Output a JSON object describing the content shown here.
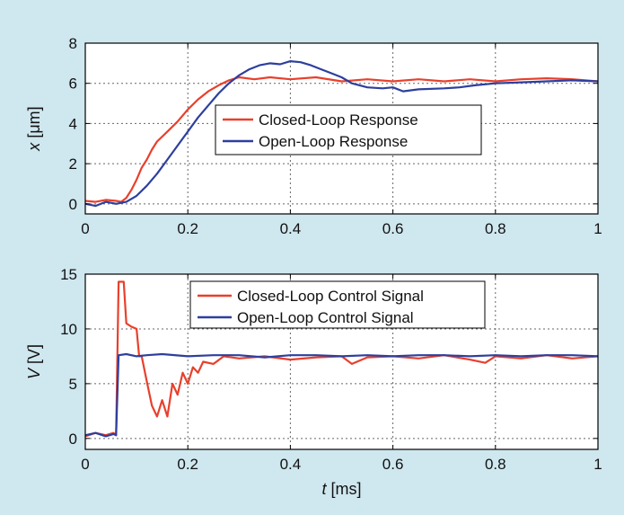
{
  "figure": {
    "background": "#cfe7ef"
  },
  "chart_data": [
    {
      "type": "line",
      "xlim": [
        0,
        1
      ],
      "ylim": [
        -0.5,
        8
      ],
      "xticks": [
        "0",
        "0.2",
        "0.4",
        "0.6",
        "0.8",
        "1"
      ],
      "yticks": [
        "0",
        "2",
        "4",
        "6",
        "8"
      ],
      "ylabel": {
        "var": "x",
        "unit": " [μm]"
      },
      "grid": true,
      "legend_position": "center",
      "series": [
        {
          "name": "Closed-Loop Response",
          "color": "#e8402c",
          "points": [
            [
              0,
              0.15
            ],
            [
              0.02,
              0.1
            ],
            [
              0.04,
              0.2
            ],
            [
              0.06,
              0.15
            ],
            [
              0.07,
              0.1
            ],
            [
              0.08,
              0.3
            ],
            [
              0.09,
              0.7
            ],
            [
              0.1,
              1.2
            ],
            [
              0.11,
              1.8
            ],
            [
              0.12,
              2.2
            ],
            [
              0.13,
              2.7
            ],
            [
              0.14,
              3.1
            ],
            [
              0.16,
              3.6
            ],
            [
              0.18,
              4.1
            ],
            [
              0.2,
              4.7
            ],
            [
              0.22,
              5.2
            ],
            [
              0.24,
              5.6
            ],
            [
              0.26,
              5.9
            ],
            [
              0.28,
              6.15
            ],
            [
              0.3,
              6.3
            ],
            [
              0.33,
              6.2
            ],
            [
              0.36,
              6.3
            ],
            [
              0.4,
              6.2
            ],
            [
              0.45,
              6.3
            ],
            [
              0.5,
              6.1
            ],
            [
              0.55,
              6.2
            ],
            [
              0.6,
              6.1
            ],
            [
              0.65,
              6.2
            ],
            [
              0.7,
              6.1
            ],
            [
              0.75,
              6.2
            ],
            [
              0.8,
              6.1
            ],
            [
              0.85,
              6.2
            ],
            [
              0.9,
              6.25
            ],
            [
              0.95,
              6.2
            ],
            [
              1.0,
              6.1
            ]
          ]
        },
        {
          "name": "Open-Loop Response",
          "color": "#2d3f9e",
          "points": [
            [
              0,
              0.0
            ],
            [
              0.02,
              -0.1
            ],
            [
              0.04,
              0.1
            ],
            [
              0.06,
              0.0
            ],
            [
              0.08,
              0.1
            ],
            [
              0.1,
              0.4
            ],
            [
              0.12,
              0.9
            ],
            [
              0.14,
              1.5
            ],
            [
              0.16,
              2.2
            ],
            [
              0.18,
              2.9
            ],
            [
              0.2,
              3.6
            ],
            [
              0.22,
              4.3
            ],
            [
              0.24,
              4.9
            ],
            [
              0.26,
              5.5
            ],
            [
              0.28,
              6.0
            ],
            [
              0.3,
              6.4
            ],
            [
              0.32,
              6.7
            ],
            [
              0.34,
              6.9
            ],
            [
              0.36,
              7.0
            ],
            [
              0.38,
              6.95
            ],
            [
              0.4,
              7.1
            ],
            [
              0.42,
              7.05
            ],
            [
              0.44,
              6.9
            ],
            [
              0.46,
              6.7
            ],
            [
              0.48,
              6.5
            ],
            [
              0.5,
              6.3
            ],
            [
              0.52,
              6.0
            ],
            [
              0.55,
              5.8
            ],
            [
              0.58,
              5.75
            ],
            [
              0.6,
              5.8
            ],
            [
              0.62,
              5.6
            ],
            [
              0.65,
              5.7
            ],
            [
              0.7,
              5.75
            ],
            [
              0.73,
              5.8
            ],
            [
              0.76,
              5.9
            ],
            [
              0.8,
              6.0
            ],
            [
              0.85,
              6.05
            ],
            [
              0.9,
              6.1
            ],
            [
              0.95,
              6.15
            ],
            [
              1.0,
              6.1
            ]
          ]
        }
      ]
    },
    {
      "type": "line",
      "xlim": [
        0,
        1
      ],
      "ylim": [
        -1,
        15
      ],
      "xticks": [
        "0",
        "0.2",
        "0.4",
        "0.6",
        "0.8",
        "1"
      ],
      "yticks": [
        "0",
        "5",
        "10",
        "15"
      ],
      "xlabel": {
        "var": "t",
        "unit": " [ms]"
      },
      "ylabel": {
        "var": "V",
        "unit": " [V]"
      },
      "grid": true,
      "legend_position": "top-center",
      "series": [
        {
          "name": "Closed-Loop Control Signal",
          "color": "#e8402c",
          "points": [
            [
              0,
              0.2
            ],
            [
              0.02,
              0.5
            ],
            [
              0.04,
              0.3
            ],
            [
              0.055,
              0.5
            ],
            [
              0.06,
              0.3
            ],
            [
              0.065,
              14.3
            ],
            [
              0.075,
              14.3
            ],
            [
              0.08,
              10.5
            ],
            [
              0.09,
              10.2
            ],
            [
              0.1,
              10
            ],
            [
              0.105,
              7.5
            ],
            [
              0.11,
              7.5
            ],
            [
              0.12,
              5.2
            ],
            [
              0.13,
              3
            ],
            [
              0.14,
              2
            ],
            [
              0.15,
              3.5
            ],
            [
              0.16,
              2
            ],
            [
              0.17,
              5
            ],
            [
              0.18,
              4
            ],
            [
              0.19,
              6
            ],
            [
              0.2,
              5
            ],
            [
              0.21,
              6.5
            ],
            [
              0.22,
              6
            ],
            [
              0.23,
              7
            ],
            [
              0.25,
              6.8
            ],
            [
              0.27,
              7.5
            ],
            [
              0.3,
              7.3
            ],
            [
              0.35,
              7.5
            ],
            [
              0.4,
              7.2
            ],
            [
              0.45,
              7.4
            ],
            [
              0.5,
              7.5
            ],
            [
              0.52,
              6.8
            ],
            [
              0.55,
              7.4
            ],
            [
              0.6,
              7.5
            ],
            [
              0.65,
              7.3
            ],
            [
              0.7,
              7.6
            ],
            [
              0.75,
              7.2
            ],
            [
              0.78,
              6.9
            ],
            [
              0.8,
              7.5
            ],
            [
              0.85,
              7.3
            ],
            [
              0.9,
              7.6
            ],
            [
              0.95,
              7.3
            ],
            [
              1.0,
              7.5
            ]
          ]
        },
        {
          "name": "Open-Loop Control Signal",
          "color": "#2d3f9e",
          "points": [
            [
              0,
              0.3
            ],
            [
              0.02,
              0.5
            ],
            [
              0.04,
              0.2
            ],
            [
              0.055,
              0.4
            ],
            [
              0.06,
              0.3
            ],
            [
              0.065,
              7.6
            ],
            [
              0.08,
              7.7
            ],
            [
              0.1,
              7.5
            ],
            [
              0.12,
              7.6
            ],
            [
              0.15,
              7.7
            ],
            [
              0.2,
              7.5
            ],
            [
              0.25,
              7.6
            ],
            [
              0.3,
              7.6
            ],
            [
              0.35,
              7.4
            ],
            [
              0.4,
              7.6
            ],
            [
              0.45,
              7.6
            ],
            [
              0.5,
              7.5
            ],
            [
              0.55,
              7.6
            ],
            [
              0.6,
              7.5
            ],
            [
              0.65,
              7.6
            ],
            [
              0.7,
              7.6
            ],
            [
              0.75,
              7.5
            ],
            [
              0.8,
              7.6
            ],
            [
              0.85,
              7.5
            ],
            [
              0.9,
              7.6
            ],
            [
              0.95,
              7.6
            ],
            [
              1.0,
              7.5
            ]
          ]
        }
      ]
    }
  ]
}
